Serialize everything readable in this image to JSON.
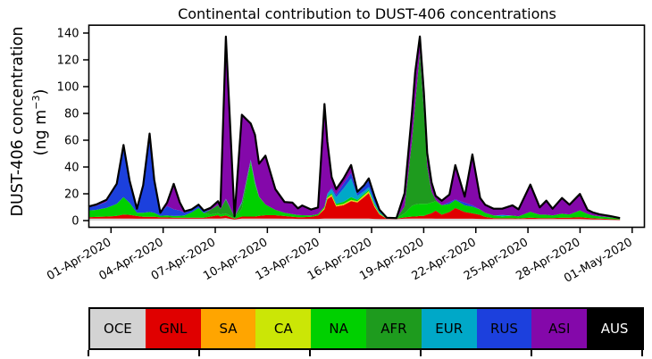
{
  "chart_data": {
    "type": "stacked_area",
    "title": "Continental contribution to DUST-406 concentrations",
    "ylabel_line1": "DUST-406 concentration",
    "ylabel_line2_pre": "(ng m",
    "ylabel_sup": "−3",
    "ylabel_line2_post": ")",
    "ylim": [
      0,
      140
    ],
    "y_ticks": [
      0,
      20,
      40,
      60,
      80,
      100,
      120,
      140
    ],
    "x_tick_labels": [
      "01-Apr-2020",
      "04-Apr-2020",
      "07-Apr-2020",
      "10-Apr-2020",
      "13-Apr-2020",
      "16-Apr-2020",
      "19-Apr-2020",
      "22-Apr-2020",
      "25-Apr-2020",
      "28-Apr-2020",
      "01-May-2020"
    ],
    "x_tick_days": [
      0,
      3,
      6,
      9,
      12,
      15,
      18,
      21,
      24,
      27,
      30
    ],
    "x_days": [
      -1.3,
      -0.85,
      -0.26,
      0.33,
      0.72,
      1.07,
      1.49,
      1.85,
      2.22,
      2.49,
      2.84,
      3.23,
      3.61,
      3.96,
      4.23,
      4.65,
      5.04,
      5.34,
      5.73,
      6.16,
      6.3,
      6.61,
      7.11,
      7.53,
      8.04,
      8.29,
      8.52,
      8.89,
      9.46,
      9.99,
      10.44,
      10.76,
      11.01,
      11.52,
      11.92,
      12.29,
      12.45,
      12.7,
      12.96,
      13.39,
      13.82,
      14.18,
      14.57,
      14.84,
      15.16,
      15.45,
      15.87,
      16.43,
      16.9,
      17.32,
      17.51,
      17.78,
      18.01,
      18.2,
      18.45,
      18.69,
      19.04,
      19.48,
      19.82,
      20.36,
      20.8,
      21.25,
      21.54,
      22.03,
      22.52,
      23.11,
      23.46,
      24.14,
      24.68,
      25.06,
      25.42,
      25.96,
      26.39,
      26.99,
      27.43,
      27.73,
      28.12,
      28.71,
      29.3
    ],
    "series": [
      {
        "name": "OCE",
        "color": "#d3d3d3",
        "values": [
          1.5,
          1.5,
          1.5,
          1.5,
          1.5,
          1.5,
          1.4,
          1.4,
          1.4,
          1.4,
          1.4,
          1.4,
          1.4,
          1.4,
          1.4,
          1.4,
          1.4,
          1.4,
          1.5,
          1.5,
          1.5,
          1.8,
          0.8,
          1.5,
          1.5,
          1.5,
          1.5,
          1.5,
          1.5,
          1.4,
          1.4,
          1.3,
          1.3,
          1.3,
          1.3,
          1.5,
          1.5,
          1.5,
          1.5,
          1.5,
          1.5,
          1.5,
          1.5,
          1.5,
          1.3,
          1.1,
          1.1,
          1.1,
          1.4,
          1.5,
          1.5,
          1.5,
          1.5,
          1.5,
          1.5,
          1.4,
          1.4,
          1.4,
          1.4,
          1.4,
          1.4,
          1.3,
          1.2,
          1.1,
          1.1,
          1.1,
          1.1,
          1.1,
          1.1,
          1.1,
          1.1,
          1.1,
          1.1,
          1.1,
          1,
          0.9,
          0.8,
          0.6,
          0.4
        ]
      },
      {
        "name": "GNL",
        "color": "#e00000",
        "values": [
          1,
          1.2,
          1.5,
          2,
          3,
          2.8,
          2,
          1.5,
          1.5,
          1.5,
          1,
          1,
          0.8,
          0.8,
          0.8,
          0.7,
          0.7,
          0.8,
          1.5,
          2.5,
          1.5,
          2,
          0.6,
          1.5,
          1.5,
          1.5,
          2,
          2.5,
          2.5,
          2,
          1.5,
          1.2,
          1.2,
          1.5,
          2.5,
          7,
          14.5,
          16.5,
          9,
          10,
          13,
          12,
          16,
          19,
          9,
          3.5,
          0.3,
          0.3,
          1,
          1.5,
          1.5,
          2,
          2,
          3,
          4,
          6,
          3,
          5,
          8,
          5,
          4,
          3,
          1.5,
          0.8,
          0.6,
          0.6,
          0.5,
          1,
          0.8,
          0.8,
          0.8,
          1,
          1,
          1.5,
          1,
          0.8,
          0.7,
          0.6,
          0.4
        ]
      },
      {
        "name": "SA",
        "color": "#ffa500",
        "values": [
          0,
          0,
          0,
          0,
          0,
          0,
          0,
          0,
          0,
          0,
          0,
          0,
          0,
          0,
          0,
          0,
          0,
          0,
          0,
          0,
          0,
          0,
          0,
          0,
          0,
          0,
          0,
          0,
          0,
          0,
          0,
          0,
          0,
          0,
          0,
          0.3,
          0.3,
          0.5,
          0.3,
          0.3,
          0.3,
          0.3,
          0.5,
          0.5,
          0.3,
          0.2,
          0,
          0,
          0,
          0,
          0,
          0,
          0,
          0,
          0,
          0,
          0,
          0,
          0,
          0,
          0,
          0,
          0,
          0,
          0,
          0,
          0,
          0,
          0,
          0,
          0,
          0,
          0,
          0,
          0,
          0,
          0,
          0,
          0
        ]
      },
      {
        "name": "CA",
        "color": "#cbe606",
        "values": [
          0,
          0,
          0,
          0,
          0,
          0,
          0,
          0,
          0,
          0,
          0,
          0,
          0,
          0,
          0,
          0,
          0,
          0,
          0,
          0,
          0,
          0,
          0,
          0,
          0,
          0,
          0,
          0,
          0,
          0,
          0,
          0,
          0,
          0,
          0,
          0.7,
          0.7,
          1,
          0.7,
          0.7,
          0.7,
          0.7,
          1,
          1,
          0.7,
          0.3,
          0,
          0,
          0,
          0,
          0,
          0,
          0,
          0,
          0,
          0,
          0,
          0,
          0,
          0,
          0,
          0,
          0,
          0,
          0,
          0,
          0,
          0,
          0,
          0,
          0,
          0,
          0,
          0,
          0,
          0,
          0,
          0,
          0
        ]
      },
      {
        "name": "NA",
        "color": "#00d000",
        "values": [
          5,
          5.3,
          6.5,
          9,
          13,
          9,
          2.5,
          3,
          3.5,
          3,
          1.2,
          1.5,
          1.2,
          1.4,
          1.7,
          4,
          7.3,
          3.4,
          1.5,
          1.5,
          1.5,
          1.5,
          0.5,
          6,
          40,
          24,
          14,
          8,
          4,
          2.5,
          2,
          1.6,
          1.5,
          1,
          1,
          1,
          1,
          1,
          1,
          1.5,
          2,
          1,
          1,
          1,
          1,
          0.7,
          0.2,
          0.2,
          3,
          8,
          9,
          9,
          9,
          8,
          8,
          7,
          7,
          6,
          6,
          5,
          5,
          4,
          3,
          2,
          1.5,
          2,
          1.5,
          4.5,
          2.5,
          2.5,
          2,
          3,
          2.5,
          5,
          3,
          2.2,
          1.6,
          1.2,
          0.7
        ]
      },
      {
        "name": "AFR",
        "color": "#1e9b1e",
        "values": [
          0,
          0,
          0,
          0,
          0,
          0,
          0,
          0,
          0,
          0,
          0,
          0,
          0,
          0,
          0,
          0,
          0,
          0,
          3.5,
          6,
          4,
          10.5,
          0.8,
          4,
          1.5,
          1,
          0.5,
          0,
          0,
          0,
          0,
          0,
          0,
          0,
          0,
          0,
          0,
          0,
          0,
          0,
          0,
          0,
          0,
          0,
          0,
          0,
          0,
          0,
          5,
          48,
          75,
          113,
          70,
          28,
          8,
          1,
          0,
          0,
          0,
          0,
          0,
          0,
          0,
          0,
          0,
          0,
          0,
          0,
          0,
          0,
          0,
          0,
          0,
          0,
          0,
          0,
          0,
          0,
          0
        ]
      },
      {
        "name": "EUR",
        "color": "#00a8c8",
        "values": [
          0,
          0,
          0,
          0,
          0,
          0,
          0,
          0,
          0,
          0,
          0,
          0,
          0,
          0,
          0,
          0,
          0,
          0,
          0,
          0,
          0,
          0.5,
          0,
          1,
          1,
          1,
          0,
          0,
          0,
          0,
          0,
          0,
          0,
          0,
          0,
          0,
          2,
          3,
          5,
          10,
          14,
          3,
          2,
          2,
          1.5,
          0.8,
          0,
          0,
          0,
          0,
          0,
          0,
          0,
          0,
          0,
          0,
          0,
          0,
          0,
          0,
          0,
          0,
          0,
          0,
          1,
          0,
          0,
          0,
          0,
          0,
          0,
          0,
          0,
          0,
          0,
          0,
          0,
          0,
          0
        ]
      },
      {
        "name": "RUS",
        "color": "#1c40dd",
        "values": [
          2.5,
          3,
          4.5,
          14,
          37,
          15,
          2.5,
          20,
          57,
          24,
          2,
          7,
          5,
          4,
          2,
          1.8,
          2,
          1.3,
          0,
          0,
          0,
          0,
          0,
          0,
          0,
          0,
          0,
          0,
          0,
          0,
          0,
          0,
          0,
          0,
          0,
          0,
          0,
          1,
          2,
          3.5,
          4,
          2,
          3.5,
          5,
          4,
          1,
          0.2,
          0,
          0,
          0,
          0,
          0,
          0,
          0,
          0,
          0,
          0,
          1.5,
          0.5,
          2,
          1,
          0,
          0,
          0,
          0,
          0,
          0,
          0,
          0,
          0,
          0,
          0,
          0,
          0,
          0,
          0,
          0,
          0,
          0
        ]
      },
      {
        "name": "ASI",
        "color": "#8408aa",
        "values": [
          0.5,
          1,
          1.5,
          1,
          2,
          1.5,
          0.5,
          0.5,
          1.5,
          0.5,
          0.3,
          2.5,
          19,
          6,
          1,
          0.5,
          0.5,
          0.5,
          1.5,
          3,
          2,
          121,
          0.4,
          65,
          27,
          35,
          24.5,
          36.5,
          15.5,
          8,
          8.5,
          5,
          7.3,
          4.5,
          5,
          76.5,
          39,
          8,
          4,
          4,
          6,
          1,
          1,
          1.5,
          0.5,
          0.5,
          0.3,
          0.3,
          10,
          21,
          24,
          12,
          13,
          10,
          7,
          3,
          3.5,
          5.5,
          25.5,
          4.5,
          38,
          8.6,
          6,
          5,
          4.7,
          7.7,
          5.3,
          20.3,
          5.5,
          10.5,
          5,
          11.8,
          7.3,
          12.3,
          3,
          2.2,
          1.6,
          1.1,
          0.4
        ]
      },
      {
        "name": "AUS",
        "color": "#000000",
        "values": [
          0,
          0,
          0,
          0,
          0,
          0,
          0,
          0,
          0,
          0,
          0,
          0,
          0,
          0,
          0,
          0,
          0,
          0,
          0,
          0,
          0,
          0,
          0,
          0,
          0,
          0,
          0,
          0,
          0,
          0,
          0,
          0,
          0,
          0,
          0,
          0,
          0,
          0,
          0,
          0,
          0,
          0,
          0,
          0,
          0,
          0,
          0,
          0,
          0,
          0,
          0,
          0,
          0,
          0,
          0,
          0,
          0,
          0,
          0,
          0,
          0,
          0,
          0,
          0,
          0,
          0,
          0,
          0,
          0,
          0,
          0,
          0,
          0,
          0,
          0,
          0,
          0,
          0,
          0
        ]
      }
    ],
    "legend": [
      {
        "label": "OCE",
        "color": "#d3d3d3",
        "text": "#000000"
      },
      {
        "label": "GNL",
        "color": "#e00000",
        "text": "#000000"
      },
      {
        "label": "SA",
        "color": "#ffa500",
        "text": "#000000"
      },
      {
        "label": "CA",
        "color": "#cbe606",
        "text": "#000000"
      },
      {
        "label": "NA",
        "color": "#00d000",
        "text": "#000000"
      },
      {
        "label": "AFR",
        "color": "#1e9b1e",
        "text": "#000000"
      },
      {
        "label": "EUR",
        "color": "#00a8c8",
        "text": "#000000"
      },
      {
        "label": "RUS",
        "color": "#1c40dd",
        "text": "#000000"
      },
      {
        "label": "ASI",
        "color": "#8408aa",
        "text": "#000000"
      },
      {
        "label": "AUS",
        "color": "#000000",
        "text": "#ffffff"
      }
    ]
  }
}
